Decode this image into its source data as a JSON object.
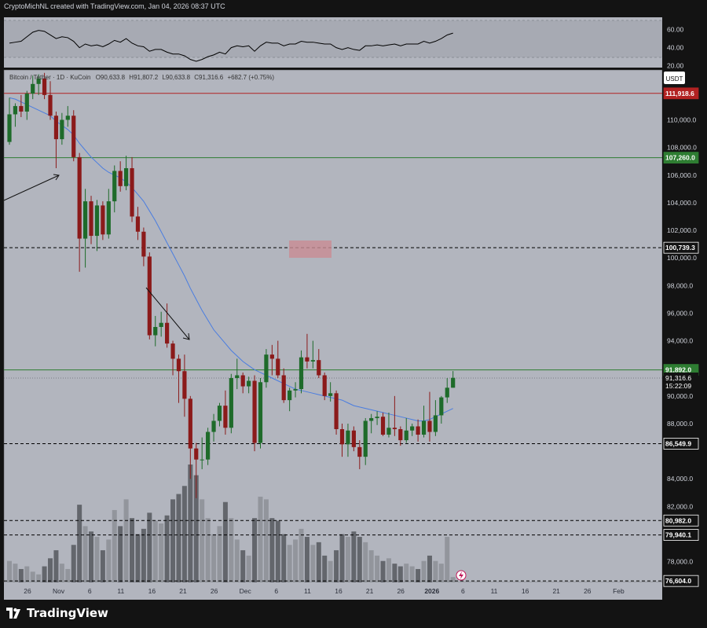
{
  "header": {
    "attribution": "CryptoMichNL created with TradingView.com, Jan 04, 2026 08:37 UTC"
  },
  "legend": {
    "symbol": "Bitcoin / Tether · 1D · KuCoin",
    "open": "O90,633.8",
    "high": "H91,807.2",
    "low": "L90,633.8",
    "close": "C91,316.6",
    "change": "+682.7 (+0.75%)"
  },
  "currency_button": "USDT",
  "brand": {
    "name": "TradingView"
  },
  "colors": {
    "up": "#1e6b2a",
    "down": "#8b1a1a",
    "ma": "#4a7de0",
    "resistance": "#b22222",
    "support": "#2e7d32",
    "panel_bg": "#b2b5be",
    "rsi_bg": "#a7aab3"
  },
  "chart_data": {
    "type": "candlestick",
    "symbol": "Bitcoin / Tether",
    "timeframe": "1D",
    "exchange": "KuCoin",
    "x_tick_labels": [
      "26",
      "Nov",
      "6",
      "11",
      "16",
      "21",
      "26",
      "Dec",
      "6",
      "11",
      "16",
      "21",
      "26",
      "2026",
      "6",
      "11",
      "16",
      "21",
      "26",
      "Feb"
    ],
    "y_tick_labels": [
      "110,000.0",
      "108,000.0",
      "106,000.0",
      "104,000.0",
      "102,000.0",
      "100,000.0",
      "98,000.0",
      "96,000.0",
      "94,000.0",
      "90,000.0",
      "88,000.0",
      "84,000.0",
      "82,000.0",
      "78,000.0"
    ],
    "ylim": [
      76500,
      113500
    ],
    "levels": [
      {
        "label": "111,918.6",
        "value": 111918.6,
        "style": "solid",
        "color": "#b22222"
      },
      {
        "label": "107,260.0",
        "value": 107260.0,
        "style": "solid",
        "color": "#2e7d32"
      },
      {
        "label": "100,739.3",
        "value": 100739.3,
        "style": "dashed",
        "color": "#000000"
      },
      {
        "label": "91,892.0",
        "value": 91892.0,
        "style": "solid",
        "color": "#2e7d32"
      },
      {
        "label": "86,549.9",
        "value": 86549.9,
        "style": "dashed",
        "color": "#000000"
      },
      {
        "label": "80,982.0",
        "value": 80982.0,
        "style": "dashed",
        "color": "#000000"
      },
      {
        "label": "79,940.1",
        "value": 79940.1,
        "style": "dashed",
        "color": "#000000"
      },
      {
        "label": "76,604.0",
        "value": 76604.0,
        "style": "dashed",
        "color": "#000000"
      }
    ],
    "last_price": {
      "label": "91,316.6",
      "countdown": "15:22:09"
    },
    "rsi": {
      "ticks": [
        "60.00",
        "40.00",
        "20.00"
      ],
      "ylim": [
        18,
        70
      ],
      "bands": [
        30,
        70
      ]
    },
    "candles": [
      {
        "o": 108400,
        "h": 111600,
        "l": 108200,
        "c": 110400,
        "v": 8
      },
      {
        "o": 110400,
        "h": 111200,
        "l": 109500,
        "c": 111000,
        "v": 7
      },
      {
        "o": 111000,
        "h": 111800,
        "l": 110200,
        "c": 110600,
        "v": 5
      },
      {
        "o": 110600,
        "h": 112100,
        "l": 110000,
        "c": 111900,
        "v": 6
      },
      {
        "o": 111900,
        "h": 113200,
        "l": 111500,
        "c": 112600,
        "v": 4
      },
      {
        "o": 112600,
        "h": 113300,
        "l": 111800,
        "c": 113000,
        "v": 3
      },
      {
        "o": 113000,
        "h": 113400,
        "l": 111500,
        "c": 111800,
        "v": 6
      },
      {
        "o": 111800,
        "h": 112800,
        "l": 110000,
        "c": 110300,
        "v": 9
      },
      {
        "o": 110300,
        "h": 110600,
        "l": 106500,
        "c": 108600,
        "v": 12
      },
      {
        "o": 108600,
        "h": 110500,
        "l": 108200,
        "c": 110000,
        "v": 7
      },
      {
        "o": 110000,
        "h": 111000,
        "l": 109500,
        "c": 110300,
        "v": 5
      },
      {
        "o": 110300,
        "h": 110700,
        "l": 107000,
        "c": 107300,
        "v": 14
      },
      {
        "o": 107300,
        "h": 107600,
        "l": 99000,
        "c": 101400,
        "v": 29
      },
      {
        "o": 101400,
        "h": 105000,
        "l": 99300,
        "c": 104100,
        "v": 21
      },
      {
        "o": 104100,
        "h": 104500,
        "l": 101000,
        "c": 101600,
        "v": 19
      },
      {
        "o": 101600,
        "h": 104200,
        "l": 100500,
        "c": 103800,
        "v": 17
      },
      {
        "o": 103800,
        "h": 104100,
        "l": 101300,
        "c": 101700,
        "v": 12
      },
      {
        "o": 101700,
        "h": 105000,
        "l": 101400,
        "c": 104100,
        "v": 16
      },
      {
        "o": 104100,
        "h": 106700,
        "l": 103300,
        "c": 106300,
        "v": 27
      },
      {
        "o": 106300,
        "h": 107000,
        "l": 104800,
        "c": 105200,
        "v": 21
      },
      {
        "o": 105200,
        "h": 107400,
        "l": 104900,
        "c": 106500,
        "v": 31
      },
      {
        "o": 106500,
        "h": 107300,
        "l": 102600,
        "c": 103000,
        "v": 24
      },
      {
        "o": 103000,
        "h": 103700,
        "l": 101300,
        "c": 101900,
        "v": 18
      },
      {
        "o": 101900,
        "h": 102200,
        "l": 99400,
        "c": 100100,
        "v": 20
      },
      {
        "o": 100100,
        "h": 100400,
        "l": 94100,
        "c": 94400,
        "v": 26
      },
      {
        "o": 94400,
        "h": 95800,
        "l": 93600,
        "c": 95000,
        "v": 23
      },
      {
        "o": 95000,
        "h": 96100,
        "l": 94300,
        "c": 95300,
        "v": 22
      },
      {
        "o": 95300,
        "h": 96700,
        "l": 93500,
        "c": 93800,
        "v": 25
      },
      {
        "o": 93800,
        "h": 94000,
        "l": 91500,
        "c": 92700,
        "v": 31
      },
      {
        "o": 92700,
        "h": 93000,
        "l": 89500,
        "c": 91800,
        "v": 33
      },
      {
        "o": 91800,
        "h": 93000,
        "l": 88500,
        "c": 89800,
        "v": 36
      },
      {
        "o": 89800,
        "h": 90000,
        "l": 84000,
        "c": 86200,
        "v": 44
      },
      {
        "o": 86200,
        "h": 86600,
        "l": 82600,
        "c": 85400,
        "v": 40
      },
      {
        "o": 85400,
        "h": 87000,
        "l": 84700,
        "c": 85400,
        "v": 31
      },
      {
        "o": 85400,
        "h": 87700,
        "l": 85000,
        "c": 87400,
        "v": 24
      },
      {
        "o": 87400,
        "h": 88700,
        "l": 86700,
        "c": 88200,
        "v": 18
      },
      {
        "o": 88200,
        "h": 89500,
        "l": 87800,
        "c": 89300,
        "v": 21
      },
      {
        "o": 89300,
        "h": 90400,
        "l": 87200,
        "c": 87700,
        "v": 30
      },
      {
        "o": 87700,
        "h": 91600,
        "l": 87300,
        "c": 91300,
        "v": 24
      },
      {
        "o": 91300,
        "h": 92700,
        "l": 90500,
        "c": 91500,
        "v": 16
      },
      {
        "o": 91500,
        "h": 91700,
        "l": 90200,
        "c": 90700,
        "v": 12
      },
      {
        "o": 90700,
        "h": 91400,
        "l": 90200,
        "c": 91100,
        "v": 10
      },
      {
        "o": 91100,
        "h": 91500,
        "l": 86000,
        "c": 86600,
        "v": 24
      },
      {
        "o": 86600,
        "h": 91300,
        "l": 86200,
        "c": 91000,
        "v": 32
      },
      {
        "o": 91000,
        "h": 93400,
        "l": 90600,
        "c": 93000,
        "v": 31
      },
      {
        "o": 93000,
        "h": 93700,
        "l": 91500,
        "c": 92700,
        "v": 24
      },
      {
        "o": 92700,
        "h": 94000,
        "l": 91300,
        "c": 91500,
        "v": 23
      },
      {
        "o": 91500,
        "h": 92000,
        "l": 89500,
        "c": 89700,
        "v": 18
      },
      {
        "o": 89700,
        "h": 90600,
        "l": 88900,
        "c": 90400,
        "v": 14
      },
      {
        "o": 90400,
        "h": 91000,
        "l": 89900,
        "c": 90500,
        "v": 16
      },
      {
        "o": 90500,
        "h": 93300,
        "l": 90200,
        "c": 92800,
        "v": 20
      },
      {
        "o": 92800,
        "h": 94500,
        "l": 92000,
        "c": 92500,
        "v": 17
      },
      {
        "o": 92500,
        "h": 94000,
        "l": 92000,
        "c": 92600,
        "v": 14
      },
      {
        "o": 92600,
        "h": 93400,
        "l": 91300,
        "c": 91500,
        "v": 15
      },
      {
        "o": 91500,
        "h": 91700,
        "l": 89700,
        "c": 90000,
        "v": 10
      },
      {
        "o": 90000,
        "h": 91000,
        "l": 89600,
        "c": 90200,
        "v": 8
      },
      {
        "o": 90200,
        "h": 90400,
        "l": 87200,
        "c": 87600,
        "v": 12
      },
      {
        "o": 87600,
        "h": 88000,
        "l": 85600,
        "c": 86500,
        "v": 18
      },
      {
        "o": 86500,
        "h": 88000,
        "l": 85600,
        "c": 87500,
        "v": 17
      },
      {
        "o": 87500,
        "h": 87800,
        "l": 86000,
        "c": 86300,
        "v": 19
      },
      {
        "o": 86300,
        "h": 86800,
        "l": 84700,
        "c": 85600,
        "v": 17
      },
      {
        "o": 85600,
        "h": 88400,
        "l": 85000,
        "c": 88200,
        "v": 15
      },
      {
        "o": 88200,
        "h": 88700,
        "l": 87300,
        "c": 88400,
        "v": 12
      },
      {
        "o": 88400,
        "h": 88900,
        "l": 87900,
        "c": 88500,
        "v": 10
      },
      {
        "o": 88500,
        "h": 88800,
        "l": 87100,
        "c": 87200,
        "v": 8
      },
      {
        "o": 87200,
        "h": 88800,
        "l": 87000,
        "c": 87700,
        "v": 9
      },
      {
        "o": 87700,
        "h": 90000,
        "l": 87100,
        "c": 87600,
        "v": 7
      },
      {
        "o": 87600,
        "h": 87800,
        "l": 86400,
        "c": 86800,
        "v": 6
      },
      {
        "o": 86800,
        "h": 88400,
        "l": 86600,
        "c": 87500,
        "v": 7
      },
      {
        "o": 87500,
        "h": 88000,
        "l": 87100,
        "c": 87800,
        "v": 6
      },
      {
        "o": 87800,
        "h": 88300,
        "l": 86700,
        "c": 87200,
        "v": 5
      },
      {
        "o": 87200,
        "h": 89300,
        "l": 87000,
        "c": 88200,
        "v": 8
      },
      {
        "o": 88200,
        "h": 90300,
        "l": 86700,
        "c": 87400,
        "v": 10
      },
      {
        "o": 87400,
        "h": 89700,
        "l": 87100,
        "c": 88600,
        "v": 8
      },
      {
        "o": 88600,
        "h": 90000,
        "l": 88000,
        "c": 89900,
        "v": 7
      },
      {
        "o": 89900,
        "h": 91300,
        "l": 89500,
        "c": 90600,
        "v": 17
      },
      {
        "o": 90600,
        "h": 91807,
        "l": 90600,
        "c": 91316,
        "v": 2
      }
    ],
    "ma": [
      111600,
      111500,
      111300,
      111100,
      110900,
      110700,
      110500,
      110300,
      109900,
      109600,
      109300,
      108900,
      108300,
      107800,
      107300,
      106900,
      106500,
      106200,
      106000,
      105800,
      105500,
      105100,
      104600,
      104100,
      103400,
      102700,
      101900,
      101100,
      100300,
      99500,
      98700,
      97800,
      97000,
      96200,
      95500,
      94800,
      94300,
      93800,
      93300,
      92900,
      92500,
      92200,
      91900,
      91700,
      91500,
      91300,
      91100,
      90900,
      90700,
      90500,
      90400,
      90300,
      90200,
      90100,
      90000,
      89900,
      89800,
      89700,
      89500,
      89300,
      89200,
      89100,
      89000,
      88900,
      88800,
      88700,
      88600,
      88500,
      88400,
      88300,
      88200,
      88200,
      88300,
      88500,
      88700,
      88900,
      89100
    ],
    "rsi_values": [
      45,
      46,
      47,
      52,
      57,
      59,
      58,
      54,
      50,
      52,
      51,
      47,
      40,
      44,
      42,
      43,
      41,
      44,
      48,
      46,
      50,
      45,
      42,
      41,
      36,
      38,
      38,
      35,
      33,
      33,
      31,
      27,
      25,
      27,
      30,
      32,
      35,
      33,
      40,
      42,
      41,
      42,
      36,
      42,
      46,
      45,
      45,
      42,
      44,
      44,
      47,
      46,
      46,
      45,
      44,
      44,
      40,
      38,
      40,
      38,
      37,
      42,
      42,
      43,
      42,
      43,
      44,
      42,
      44,
      44,
      44,
      47,
      45,
      47,
      50,
      54,
      56
    ]
  }
}
